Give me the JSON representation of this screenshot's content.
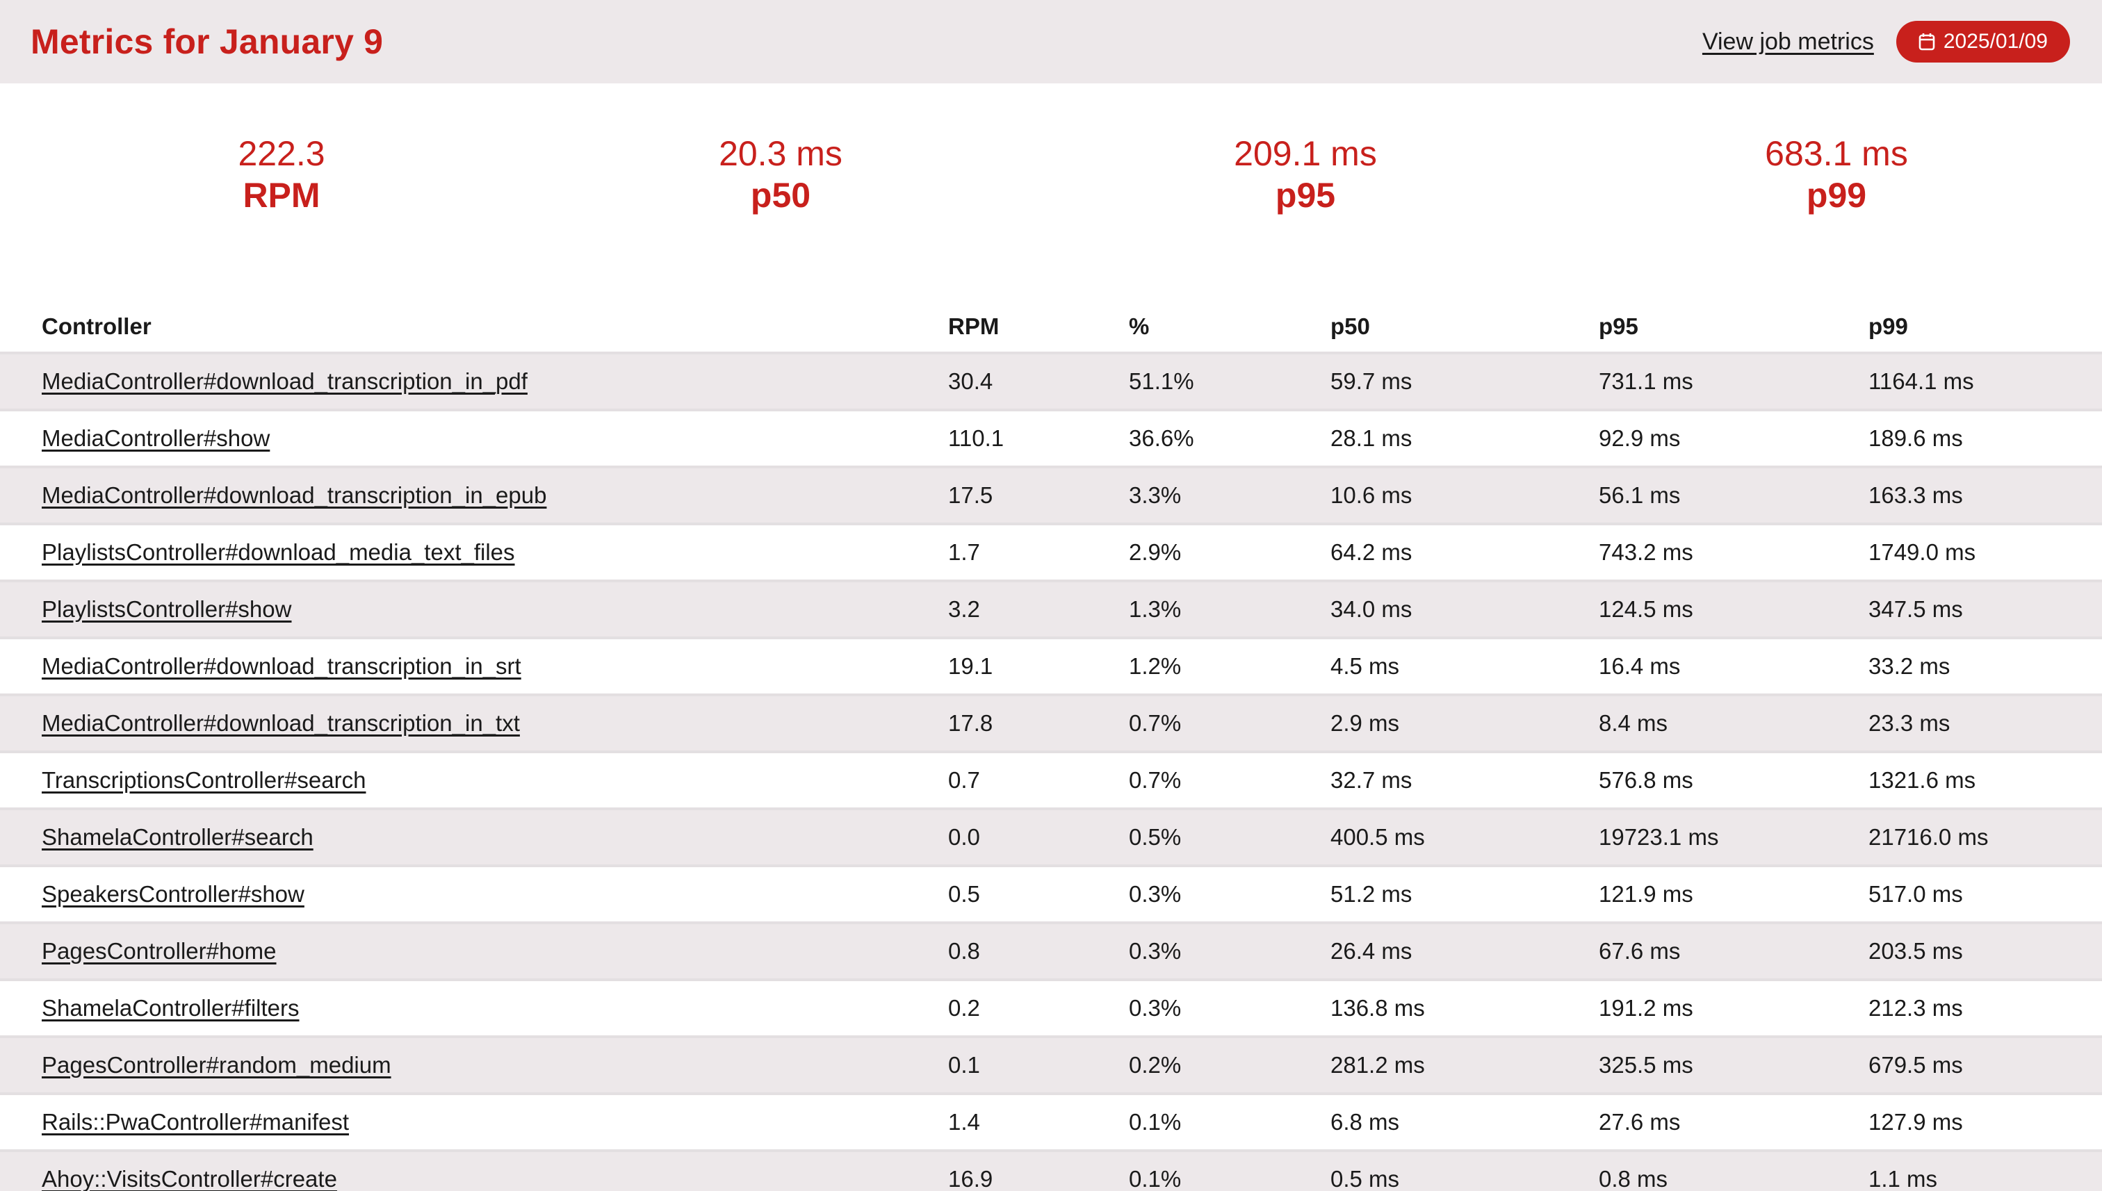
{
  "header": {
    "title": "Metrics for January 9",
    "job_link": "View job metrics",
    "date": "2025/01/09",
    "date_icon": "calendar-icon"
  },
  "summary": [
    {
      "value": "222.3",
      "label": "RPM"
    },
    {
      "value": "20.3 ms",
      "label": "p50"
    },
    {
      "value": "209.1 ms",
      "label": "p95"
    },
    {
      "value": "683.1 ms",
      "label": "p99"
    }
  ],
  "colors": {
    "accent": "#c8201c",
    "stripe": "#ede8ea",
    "divider": "#e3dfe1"
  },
  "table": {
    "headers": [
      "Controller",
      "RPM",
      "%",
      "p50",
      "p95",
      "p99"
    ],
    "rows": [
      [
        "MediaController#download_transcription_in_pdf",
        "30.4",
        "51.1%",
        "59.7 ms",
        "731.1 ms",
        "1164.1 ms"
      ],
      [
        "MediaController#show",
        "110.1",
        "36.6%",
        "28.1 ms",
        "92.9 ms",
        "189.6 ms"
      ],
      [
        "MediaController#download_transcription_in_epub",
        "17.5",
        "3.3%",
        "10.6 ms",
        "56.1 ms",
        "163.3 ms"
      ],
      [
        "PlaylistsController#download_media_text_files",
        "1.7",
        "2.9%",
        "64.2 ms",
        "743.2 ms",
        "1749.0 ms"
      ],
      [
        "PlaylistsController#show",
        "3.2",
        "1.3%",
        "34.0 ms",
        "124.5 ms",
        "347.5 ms"
      ],
      [
        "MediaController#download_transcription_in_srt",
        "19.1",
        "1.2%",
        "4.5 ms",
        "16.4 ms",
        "33.2 ms"
      ],
      [
        "MediaController#download_transcription_in_txt",
        "17.8",
        "0.7%",
        "2.9 ms",
        "8.4 ms",
        "23.3 ms"
      ],
      [
        "TranscriptionsController#search",
        "0.7",
        "0.7%",
        "32.7 ms",
        "576.8 ms",
        "1321.6 ms"
      ],
      [
        "ShamelaController#search",
        "0.0",
        "0.5%",
        "400.5 ms",
        "19723.1 ms",
        "21716.0 ms"
      ],
      [
        "SpeakersController#show",
        "0.5",
        "0.3%",
        "51.2 ms",
        "121.9 ms",
        "517.0 ms"
      ],
      [
        "PagesController#home",
        "0.8",
        "0.3%",
        "26.4 ms",
        "67.6 ms",
        "203.5 ms"
      ],
      [
        "ShamelaController#filters",
        "0.2",
        "0.3%",
        "136.8 ms",
        "191.2 ms",
        "212.3 ms"
      ],
      [
        "PagesController#random_medium",
        "0.1",
        "0.2%",
        "281.2 ms",
        "325.5 ms",
        "679.5 ms"
      ],
      [
        "Rails::PwaController#manifest",
        "1.4",
        "0.1%",
        "6.8 ms",
        "27.6 ms",
        "127.9 ms"
      ],
      [
        "Ahoy::VisitsController#create",
        "16.9",
        "0.1%",
        "0.5 ms",
        "0.8 ms",
        "1.1 ms"
      ]
    ]
  }
}
